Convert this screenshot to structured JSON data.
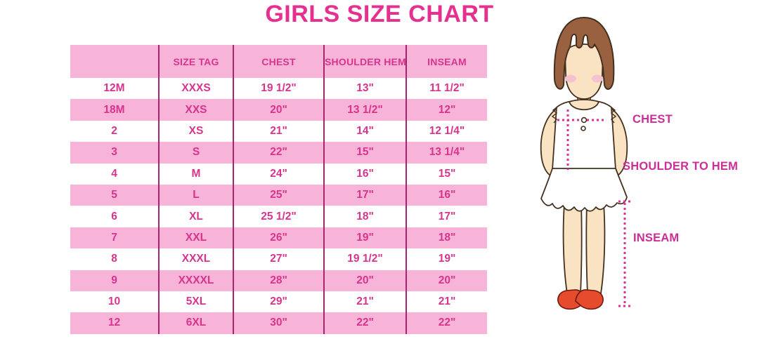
{
  "title": "GIRLS SIZE CHART",
  "chart_data": {
    "type": "table",
    "title": "GIRLS SIZE CHART",
    "columns": [
      "",
      "SIZE TAG",
      "CHEST",
      "SHOULDER HEM",
      "INSEAM"
    ],
    "rows": [
      [
        "12M",
        "XXXS",
        "19 1/2\"",
        "13\"",
        "11 1/2\""
      ],
      [
        "18M",
        "XXS",
        "20\"",
        "13 1/2\"",
        "12\""
      ],
      [
        "2",
        "XS",
        "21\"",
        "14\"",
        "12 1/4\""
      ],
      [
        "3",
        "S",
        "22\"",
        "15\"",
        "13 1/4\""
      ],
      [
        "4",
        "M",
        "24\"",
        "16\"",
        "15\""
      ],
      [
        "5",
        "L",
        "25\"",
        "17\"",
        "16\""
      ],
      [
        "6",
        "XL",
        "25 1/2\"",
        "18\"",
        "17\""
      ],
      [
        "7",
        "XXL",
        "26\"",
        "19\"",
        "18\""
      ],
      [
        "8",
        "XXXL",
        "27\"",
        "19 1/2\"",
        "19\""
      ],
      [
        "9",
        "XXXXL",
        "28\"",
        "20\"",
        "20\""
      ],
      [
        "10",
        "5XL",
        "29\"",
        "21\"",
        "21\""
      ],
      [
        "12",
        "6XL",
        "30\"",
        "22\"",
        "22\""
      ]
    ],
    "layout_hints": {
      "striped_rows": true,
      "header_background": "pink",
      "column_dividers": "vertical only"
    }
  },
  "diagram": {
    "labels": {
      "chest": "CHEST",
      "shoulder_to_hem": "SHOULDER TO HEM",
      "inseam": "INSEAM"
    }
  },
  "colors": {
    "title_pink": "#E5308F",
    "row_pink": "#F8B4D8",
    "table_text_pink": "#D8348E",
    "divider_magenta": "#A3256E",
    "label_magenta": "#CB2E97",
    "dotted_line_magenta": "#D6319B",
    "hair_brown": "#9A6141",
    "skin": "#FAE3C2",
    "shoe_red": "#E74B2E"
  }
}
